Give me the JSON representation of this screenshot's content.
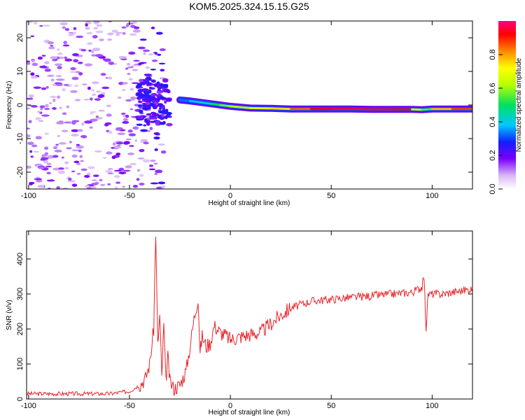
{
  "title": "KOM5.2025.324.15.15.G25",
  "chart_data": [
    {
      "type": "heatmap",
      "xlabel": "Height of straight line (km)",
      "ylabel": "Frequency (Hz)",
      "xlim": [
        -101,
        120
      ],
      "ylim": [
        -25,
        25
      ],
      "xticks": [
        -100,
        -50,
        0,
        50,
        100
      ],
      "yticks": [
        -20,
        -10,
        0,
        10,
        20
      ],
      "colorbar": {
        "label": "Normalized spectral amplitude",
        "range": [
          0,
          1
        ],
        "ticks": [
          0.0,
          0.2,
          0.4,
          0.6,
          0.8
        ]
      },
      "ridge": {
        "x": [
          -25,
          -20,
          -15,
          -10,
          -5,
          0,
          10,
          20,
          30,
          40,
          50,
          60,
          70,
          80,
          90,
          95,
          100,
          110,
          120
        ],
        "freq": [
          1.5,
          1.2,
          0.8,
          0.4,
          0.0,
          -0.4,
          -0.9,
          -1.0,
          -1.2,
          -1.2,
          -1.2,
          -1.2,
          -1.3,
          -1.3,
          -1.3,
          -1.4,
          -1.2,
          -1.2,
          -1.2
        ],
        "amplitude": [
          0.3,
          0.35,
          0.4,
          0.45,
          0.55,
          0.6,
          0.65,
          0.7,
          0.8,
          0.9,
          0.95,
          0.95,
          0.95,
          0.95,
          0.9,
          0.4,
          0.7,
          0.85,
          0.9
        ]
      }
    },
    {
      "type": "line",
      "xlabel": "Height of straight line (km)",
      "ylabel": "SNR (v/v)",
      "xlim": [
        -101,
        120
      ],
      "ylim": [
        0,
        480
      ],
      "xticks": [
        -100,
        -50,
        0,
        50,
        100
      ],
      "yticks": [
        0,
        100,
        200,
        300,
        400
      ],
      "series": [
        {
          "name": "SNR",
          "color": "#e8252a",
          "x": [
            -101,
            -90,
            -80,
            -70,
            -60,
            -50,
            -45,
            -42,
            -40,
            -38,
            -37,
            -36,
            -35,
            -34,
            -33,
            -32,
            -31,
            -30,
            -28,
            -25,
            -22,
            -20,
            -18,
            -16,
            -15,
            -14,
            -12,
            -10,
            -8,
            -5,
            -2,
            0,
            3,
            6,
            10,
            15,
            20,
            25,
            30,
            40,
            50,
            60,
            70,
            80,
            90,
            95,
            96,
            97,
            98,
            100,
            105,
            110,
            115,
            120
          ],
          "y": [
            15,
            15,
            15,
            15,
            15,
            22,
            40,
            60,
            100,
            200,
            480,
            150,
            240,
            60,
            210,
            50,
            120,
            50,
            30,
            40,
            80,
            150,
            230,
            290,
            130,
            180,
            150,
            160,
            210,
            190,
            180,
            170,
            175,
            180,
            185,
            190,
            215,
            240,
            260,
            280,
            285,
            290,
            295,
            300,
            305,
            320,
            350,
            200,
            300,
            300,
            300,
            305,
            310,
            315
          ]
        }
      ]
    }
  ]
}
